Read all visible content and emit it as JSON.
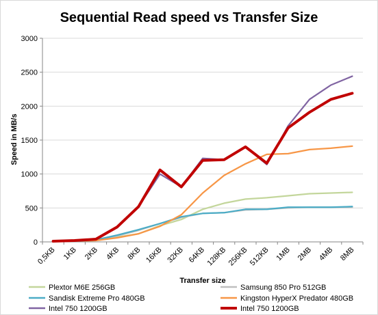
{
  "chart_data": {
    "type": "line",
    "title": "Sequential Read speed vs Transfer Size",
    "xlabel": "Transfer size",
    "ylabel": "Speed in MB/s",
    "categories": [
      "0,5KB",
      "1KB",
      "2KB",
      "4KB",
      "8KB",
      "16KB",
      "32KB",
      "64KB",
      "128KB",
      "256KB",
      "512KB",
      "1MB",
      "2MB",
      "4MB",
      "8MB"
    ],
    "ylim": [
      0,
      3000
    ],
    "yticks": [
      "0",
      "500",
      "1000",
      "1500",
      "2000",
      "2500",
      "3000"
    ],
    "grid": "horizontal",
    "legend_position": "bottom",
    "series": [
      {
        "name": "Plextor M6E 256GB",
        "color": "#c3d69b",
        "values": [
          10,
          15,
          20,
          70,
          120,
          240,
          330,
          480,
          570,
          630,
          650,
          680,
          710,
          720,
          730
        ]
      },
      {
        "name": "Samsung 850 Pro 512GB",
        "color": "#bfbfbf",
        "values": [
          10,
          15,
          25,
          90,
          170,
          270,
          360,
          420,
          430,
          470,
          480,
          500,
          510,
          510,
          510
        ]
      },
      {
        "name": "Sandisk Extreme Pro 480GB",
        "color": "#4bacc6",
        "values": [
          10,
          20,
          30,
          100,
          180,
          270,
          370,
          420,
          430,
          480,
          480,
          510,
          510,
          510,
          520
        ]
      },
      {
        "name": "Kingston HyperX Predator 480GB",
        "color": "#f79646",
        "values": [
          10,
          15,
          20,
          60,
          120,
          230,
          400,
          720,
          980,
          1150,
          1290,
          1300,
          1360,
          1380,
          1410
        ]
      },
      {
        "name": "Intel 750 1200GB",
        "color": "#8064a2",
        "values": [
          10,
          20,
          40,
          210,
          520,
          1000,
          810,
          1230,
          1210,
          1400,
          1140,
          1710,
          2100,
          2310,
          2440
        ]
      },
      {
        "name": "Intel 750 1200GB",
        "color": "#c00000",
        "values": [
          10,
          20,
          40,
          220,
          520,
          1060,
          810,
          1200,
          1210,
          1400,
          1160,
          1680,
          1910,
          2100,
          2190
        ]
      }
    ]
  }
}
